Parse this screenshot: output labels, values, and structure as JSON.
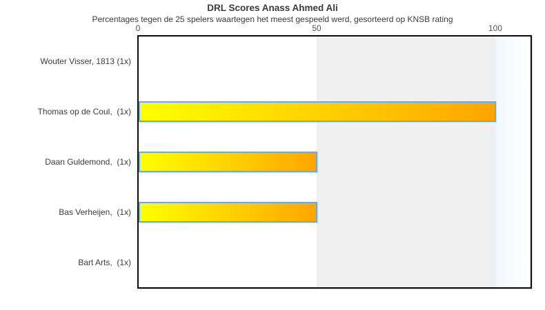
{
  "chart_data": {
    "type": "bar",
    "orientation": "horizontal",
    "title": "DRL Scores Anass Ahmed Ali",
    "subtitle": "Percentages tegen de 25 spelers waartegen het meest gespeeld werd, gesorteerd op KNSB rating",
    "categories": [
      "Wouter Visser, 1813 (1x)",
      "Thomas op de Coul,  (1x)",
      "Daan Guldemond,  (1x)",
      "Bas Verheijen,  (1x)",
      "Bart Arts,  (1x)"
    ],
    "values": [
      0,
      100,
      50,
      50,
      0
    ],
    "x_ticks": [
      0,
      50,
      100
    ],
    "xlim": [
      0,
      110
    ],
    "xlabel": "",
    "ylabel": "",
    "grid": false,
    "legend": "none",
    "colors": {
      "bar_gradient_start": "#ffff00",
      "bar_gradient_end": "#ffa500",
      "bar_border": "#66ade1",
      "band_50_100": "#f0f0f0",
      "band_beyond_100_start": "#f0f7fc",
      "band_beyond_100_end": "#ffffff",
      "plot_border": "#0a0a0a",
      "plot_shadow": "#c7dff1",
      "title_text": "#3b3b3b",
      "label_text": "#3c3c3c",
      "tick_text": "#545454"
    }
  }
}
